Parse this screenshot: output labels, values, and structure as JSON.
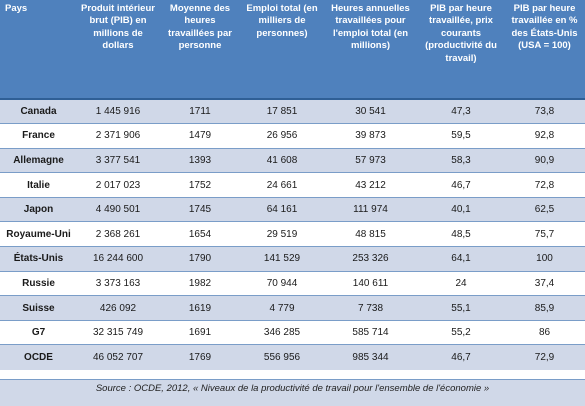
{
  "headers": [
    "Pays",
    "Produit intérieur brut (PIB) en millions de dollars",
    "Moyenne des heures travaillées par personne",
    "Emploi total (en milliers de personnes)",
    "Heures annuelles travaillées pour l'emploi total (en millions)",
    "PIB par heure travaillée, prix courants (productivité du travail)",
    "PIB par heure travaillée en % des États-Unis (USA = 100)"
  ],
  "rows": [
    [
      "Canada",
      "1 445 916",
      "1711",
      "17 851",
      "30 541",
      "47,3",
      "73,8"
    ],
    [
      "France",
      "2 371 906",
      "1479",
      "26 956",
      "39 873",
      "59,5",
      "92,8"
    ],
    [
      "Allemagne",
      "3 377 541",
      "1393",
      "41 608",
      "57 973",
      "58,3",
      "90,9"
    ],
    [
      "Italie",
      "2 017 023",
      "1752",
      "24 661",
      "43 212",
      "46,7",
      "72,8"
    ],
    [
      "Japon",
      "4 490 501",
      "1745",
      "64 161",
      "111 974",
      "40,1",
      "62,5"
    ],
    [
      "Royaume-Uni",
      "2 368 261",
      "1654",
      "29 519",
      "48 815",
      "48,5",
      "75,7"
    ],
    [
      "États-Unis",
      "16 244 600",
      "1790",
      "141 529",
      "253 326",
      "64,1",
      "100"
    ],
    [
      "Russie",
      "3 373 163",
      "1982",
      "70 944",
      "140 611",
      "24",
      "37,4"
    ],
    [
      "Suisse",
      "426 092",
      "1619",
      "4 779",
      "7 738",
      "55,1",
      "85,9"
    ],
    [
      "G7",
      "32 315 749",
      "1691",
      "346 285",
      "585 714",
      "55,2",
      "86"
    ],
    [
      "OCDE",
      "46 052 707",
      "1769",
      "556 956",
      "985 344",
      "46,7",
      "72,9"
    ]
  ],
  "source": "Source : OCDE, 2012, « Niveaux de la productivité de travail pour l'ensemble de l'économie »"
}
